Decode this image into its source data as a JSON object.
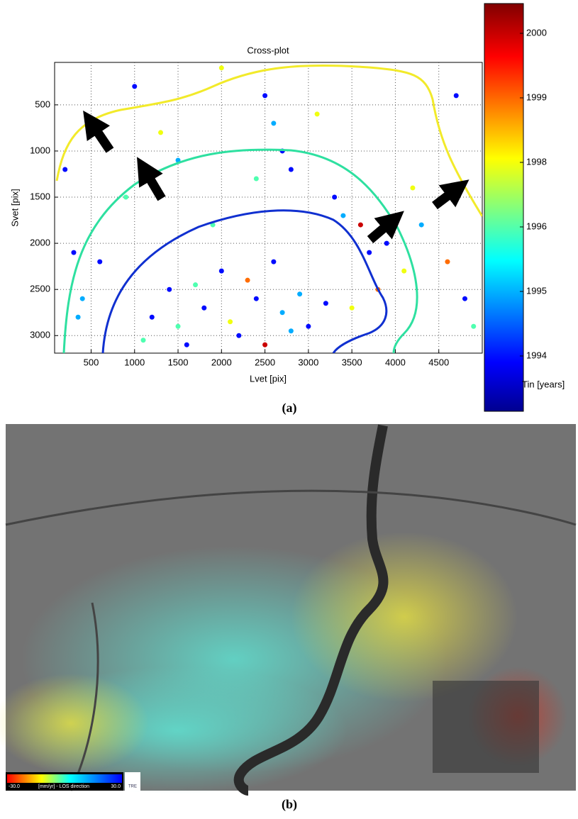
{
  "chart_data": {
    "type": "scatter",
    "title": "Cross-plot",
    "x_label": "Lvet [pix]",
    "y_label": "Svet [pix]",
    "xlim": [
      80,
      5000
    ],
    "ylim": [
      40,
      3190
    ],
    "y_inverted": true,
    "grid": true,
    "xticks": [
      500,
      1000,
      1500,
      2000,
      2500,
      3000,
      3500,
      4000,
      4500
    ],
    "yticks": [
      500,
      1000,
      1500,
      2000,
      2500,
      3000
    ],
    "colorbar": {
      "label": "Tin [years]",
      "ticks": [
        1994,
        1995,
        1996,
        1998,
        1999,
        2000
      ],
      "colormap": "jet"
    },
    "series": [
      {
        "x": [
          1200,
          1500,
          1800,
          2100,
          2400,
          2700,
          3000,
          1400,
          1700,
          2000,
          2300,
          2600,
          2900,
          3200,
          3500,
          1100,
          1600,
          2200,
          2500,
          2800,
          3700,
          3900,
          4100,
          3800,
          600,
          400,
          300,
          900,
          1300,
          2500,
          2600,
          2700,
          2400,
          2800,
          3100,
          3300,
          4300,
          4600,
          4800,
          4900,
          200,
          350,
          1000,
          1900,
          3400,
          4200,
          4700,
          2000,
          1500,
          3600
        ],
        "values": [
          2800,
          2900,
          2700,
          2850,
          2600,
          2750,
          2900,
          2500,
          2450,
          2300,
          2400,
          2200,
          2550,
          2650,
          2700,
          3050,
          3100,
          3000,
          3100,
          2950,
          2100,
          2000,
          2300,
          2500,
          2200,
          2600,
          2100,
          1500,
          800,
          400,
          700,
          1000,
          1300,
          1200,
          600,
          1500,
          1800,
          2200,
          2600,
          2900,
          1200,
          2800,
          300,
          1800,
          1700,
          1400,
          400,
          100,
          1100,
          1800
        ],
        "color_values": [
          1994,
          1996,
          1994,
          1998,
          1994,
          1995,
          1994,
          1994,
          1996,
          1994,
          1999,
          1994,
          1995,
          1994,
          1998,
          1996,
          1994,
          1994,
          2000,
          1995,
          1994,
          1994,
          1998,
          1999,
          1994,
          1995,
          1994,
          1996,
          1998,
          1994,
          1995,
          1994,
          1996,
          1994,
          1998,
          1994,
          1995,
          1999,
          1994,
          1996,
          1994,
          1995,
          1994,
          1996,
          1995,
          1998,
          1994,
          1998,
          1995,
          2000
        ]
      }
    ]
  },
  "captions": [
    "(a)",
    "(b)"
  ],
  "map_legend": {
    "min": "-30.0",
    "label": "[mm/yr] - LOS direction",
    "max": "30.0",
    "logo": "TRE"
  }
}
